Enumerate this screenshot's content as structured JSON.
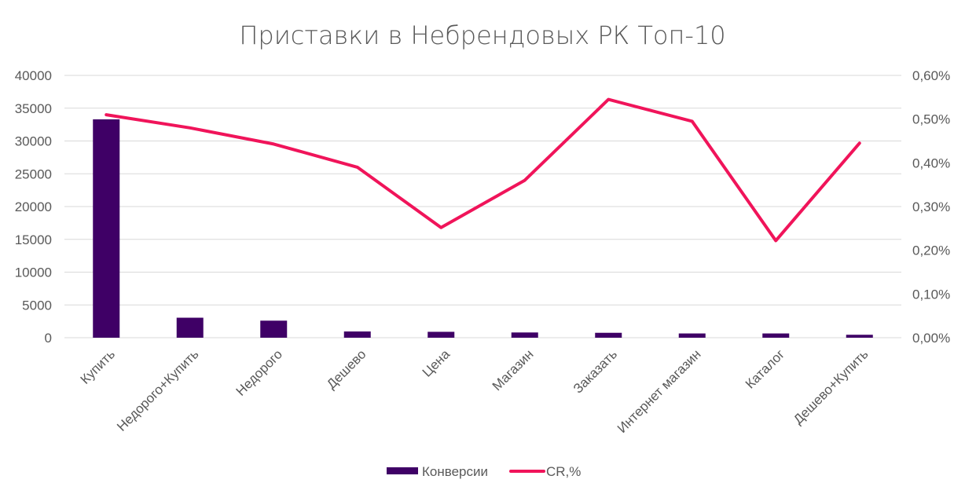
{
  "chart_data": {
    "type": "bar+line",
    "title": "Приставки в Небрендовых РК Топ-10",
    "categories": [
      "Купить",
      "Недорого+Купить",
      "Недорого",
      "Дешево",
      "Цена",
      "Магазин",
      "Заказать",
      "Интернет магазин",
      "Каталог",
      "Дешево+Купить"
    ],
    "series": [
      {
        "name": "Конверсии",
        "type": "bar",
        "axis": "left",
        "color": "#3f0066",
        "values": [
          33300,
          3050,
          2600,
          950,
          900,
          800,
          750,
          650,
          650,
          450
        ]
      },
      {
        "name": "CR,%",
        "type": "line",
        "axis": "right",
        "color": "#f0145a",
        "values": [
          0.51,
          0.48,
          0.443,
          0.39,
          0.252,
          0.36,
          0.545,
          0.495,
          0.222,
          0.445
        ]
      }
    ],
    "y_left": {
      "min": 0,
      "max": 40000,
      "ticks": [
        "0",
        "5000",
        "10000",
        "15000",
        "20000",
        "25000",
        "30000",
        "35000",
        "40000"
      ]
    },
    "y_right": {
      "min": 0,
      "max": 0.6,
      "ticks": [
        "0,00%",
        "0,10%",
        "0,20%",
        "0,30%",
        "0,40%",
        "0,50%",
        "0,60%"
      ]
    },
    "grid": true,
    "legend": "bottom"
  }
}
